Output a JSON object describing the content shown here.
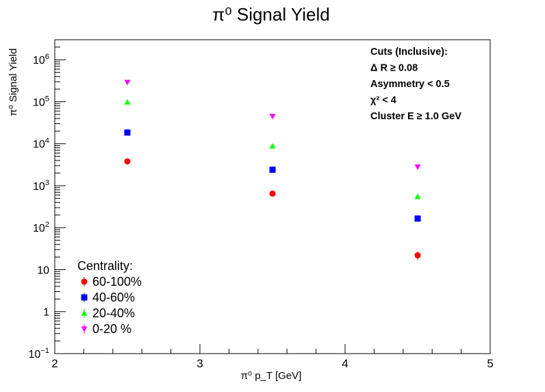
{
  "chart_data": {
    "type": "scatter",
    "title": "π⁰ Signal Yield",
    "xlabel": "π⁰ p_T [GeV]",
    "ylabel": "π⁰ Signal Yield",
    "xlim": [
      2,
      5
    ],
    "ylim": [
      0.1,
      3000000
    ],
    "y_scale": "log",
    "x_ticks": [
      "2",
      "3",
      "4",
      "5"
    ],
    "y_tick_values": [
      0.1,
      1,
      10,
      100,
      1000,
      10000,
      100000,
      1000000
    ],
    "y_ticks": [
      {
        "base": "10",
        "exp": "−1"
      },
      {
        "base": "1",
        "exp": ""
      },
      {
        "base": "10",
        "exp": ""
      },
      {
        "base": "10",
        "exp": "2"
      },
      {
        "base": "10",
        "exp": "3"
      },
      {
        "base": "10",
        "exp": "4"
      },
      {
        "base": "10",
        "exp": "5"
      },
      {
        "base": "10",
        "exp": "6"
      }
    ],
    "x": [
      2.5,
      3.5,
      4.5
    ],
    "series": [
      {
        "name": "60-100%",
        "values": [
          3800,
          650,
          22
        ],
        "errors": [
          300,
          60,
          5
        ],
        "color": "#ff0000",
        "marker": "circle"
      },
      {
        "name": "40-60%",
        "values": [
          18500,
          2400,
          165
        ],
        "errors": [
          500,
          100,
          10
        ],
        "color": "#0000ff",
        "marker": "square"
      },
      {
        "name": "20-40%",
        "values": [
          98000,
          8800,
          550
        ],
        "errors": [
          1000,
          200,
          20
        ],
        "color": "#00ff00",
        "marker": "triangle-up"
      },
      {
        "name": "0-20 %",
        "values": [
          290000,
          45000,
          2800
        ],
        "errors": [
          2000,
          500,
          60
        ],
        "color": "#ff00ff",
        "marker": "triangle-down"
      }
    ],
    "legend": {
      "title": "Centrality:",
      "placement": "bottom-left"
    },
    "grid": false
  },
  "annotation": {
    "lines": [
      "Cuts (Inclusive):",
      "Δ R  ≥ 0.08",
      "Asymmetry < 0.5",
      "χ² < 4",
      "Cluster E   ≥ 1.0 GeV"
    ]
  }
}
